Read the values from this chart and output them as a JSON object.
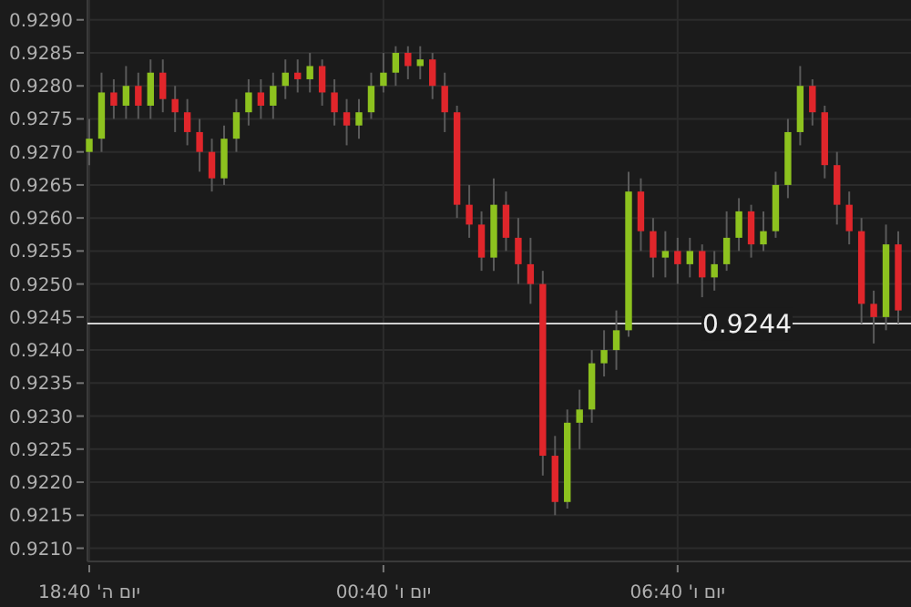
{
  "chart_data": {
    "type": "candlestick",
    "categories": [
      "יום ה' 18:40",
      null,
      null,
      null,
      null,
      null,
      null,
      null,
      null,
      null,
      null,
      null,
      null,
      null,
      null,
      null,
      null,
      null,
      null,
      null,
      null,
      null,
      null,
      null,
      "יום ו' 00:40",
      null,
      null,
      null,
      null,
      null,
      null,
      null,
      null,
      null,
      null,
      null,
      null,
      null,
      null,
      null,
      null,
      null,
      null,
      null,
      null,
      null,
      null,
      null,
      "יום ו' 06:40",
      null,
      null,
      null,
      null,
      null,
      null,
      null,
      null,
      null,
      null,
      null,
      null,
      null,
      null,
      null,
      null,
      null,
      null
    ],
    "ohlc": [
      [
        0.927,
        0.9275,
        0.9268,
        0.9272
      ],
      [
        0.9272,
        0.9282,
        0.927,
        0.9279
      ],
      [
        0.9279,
        0.9281,
        0.9275,
        0.9277
      ],
      [
        0.9277,
        0.9283,
        0.9275,
        0.928
      ],
      [
        0.928,
        0.9282,
        0.9275,
        0.9277
      ],
      [
        0.9277,
        0.9284,
        0.9275,
        0.9282
      ],
      [
        0.9282,
        0.9284,
        0.9276,
        0.9278
      ],
      [
        0.9278,
        0.928,
        0.9273,
        0.9276
      ],
      [
        0.9276,
        0.9278,
        0.9271,
        0.9273
      ],
      [
        0.9273,
        0.9275,
        0.9267,
        0.927
      ],
      [
        0.927,
        0.9272,
        0.9264,
        0.9266
      ],
      [
        0.9266,
        0.9274,
        0.9265,
        0.9272
      ],
      [
        0.9272,
        0.9278,
        0.927,
        0.9276
      ],
      [
        0.9276,
        0.9281,
        0.9274,
        0.9279
      ],
      [
        0.9279,
        0.9281,
        0.9275,
        0.9277
      ],
      [
        0.9277,
        0.9282,
        0.9275,
        0.928
      ],
      [
        0.928,
        0.9284,
        0.9278,
        0.9282
      ],
      [
        0.9282,
        0.9284,
        0.9279,
        0.9281
      ],
      [
        0.9281,
        0.9285,
        0.9279,
        0.9283
      ],
      [
        0.9283,
        0.9284,
        0.9277,
        0.9279
      ],
      [
        0.9279,
        0.9281,
        0.9274,
        0.9276
      ],
      [
        0.9276,
        0.9278,
        0.9271,
        0.9274
      ],
      [
        0.9274,
        0.9278,
        0.9272,
        0.9276
      ],
      [
        0.9276,
        0.9282,
        0.9275,
        0.928
      ],
      [
        0.928,
        0.9285,
        0.9279,
        0.9282
      ],
      [
        0.9282,
        0.9286,
        0.928,
        0.9285
      ],
      [
        0.9285,
        0.9286,
        0.9281,
        0.9283
      ],
      [
        0.9283,
        0.9286,
        0.9281,
        0.9284
      ],
      [
        0.9284,
        0.9285,
        0.9278,
        0.928
      ],
      [
        0.928,
        0.9282,
        0.9273,
        0.9276
      ],
      [
        0.9276,
        0.9277,
        0.926,
        0.9262
      ],
      [
        0.9262,
        0.9265,
        0.9257,
        0.9259
      ],
      [
        0.9259,
        0.9261,
        0.9252,
        0.9254
      ],
      [
        0.9254,
        0.9266,
        0.9252,
        0.9262
      ],
      [
        0.9262,
        0.9264,
        0.9255,
        0.9257
      ],
      [
        0.9257,
        0.926,
        0.925,
        0.9253
      ],
      [
        0.9253,
        0.9257,
        0.9247,
        0.925
      ],
      [
        0.925,
        0.9252,
        0.9221,
        0.9224
      ],
      [
        0.9224,
        0.9227,
        0.9215,
        0.9217
      ],
      [
        0.9217,
        0.9231,
        0.9216,
        0.9229
      ],
      [
        0.9229,
        0.9234,
        0.9225,
        0.9231
      ],
      [
        0.9231,
        0.924,
        0.9229,
        0.9238
      ],
      [
        0.9238,
        0.9243,
        0.9236,
        0.924
      ],
      [
        0.924,
        0.9246,
        0.9237,
        0.9243
      ],
      [
        0.9243,
        0.9267,
        0.9242,
        0.9264
      ],
      [
        0.9264,
        0.9266,
        0.9255,
        0.9258
      ],
      [
        0.9258,
        0.926,
        0.9251,
        0.9254
      ],
      [
        0.9254,
        0.9258,
        0.9251,
        0.9255
      ],
      [
        0.9255,
        0.9257,
        0.925,
        0.9253
      ],
      [
        0.9253,
        0.9257,
        0.9251,
        0.9255
      ],
      [
        0.9255,
        0.9256,
        0.9248,
        0.9251
      ],
      [
        0.9251,
        0.9255,
        0.9249,
        0.9253
      ],
      [
        0.9253,
        0.9261,
        0.9252,
        0.9257
      ],
      [
        0.9257,
        0.9263,
        0.9255,
        0.9261
      ],
      [
        0.9261,
        0.9262,
        0.9254,
        0.9256
      ],
      [
        0.9256,
        0.9261,
        0.9255,
        0.9258
      ],
      [
        0.9258,
        0.9267,
        0.9257,
        0.9265
      ],
      [
        0.9265,
        0.9275,
        0.9263,
        0.9273
      ],
      [
        0.9273,
        0.9283,
        0.9271,
        0.928
      ],
      [
        0.928,
        0.9281,
        0.9274,
        0.9276
      ],
      [
        0.9276,
        0.9277,
        0.9266,
        0.9268
      ],
      [
        0.9268,
        0.927,
        0.9259,
        0.9262
      ],
      [
        0.9262,
        0.9264,
        0.9256,
        0.9258
      ],
      [
        0.9258,
        0.926,
        0.9244,
        0.9247
      ],
      [
        0.9247,
        0.9249,
        0.9241,
        0.9245
      ],
      [
        0.9245,
        0.9259,
        0.9243,
        0.9256
      ],
      [
        0.9256,
        0.9258,
        0.9244,
        0.9246
      ]
    ],
    "colors": [
      "#8dc21f",
      "#8dc21f",
      "#e0262b",
      "#8dc21f",
      "#e0262b",
      "#8dc21f",
      "#e0262b",
      "#e0262b",
      "#e0262b",
      "#e0262b",
      "#e0262b",
      "#8dc21f",
      "#8dc21f",
      "#8dc21f",
      "#e0262b",
      "#8dc21f",
      "#8dc21f",
      "#e0262b",
      "#8dc21f",
      "#e0262b",
      "#e0262b",
      "#e0262b",
      "#8dc21f",
      "#8dc21f",
      "#8dc21f",
      "#8dc21f",
      "#e0262b",
      "#8dc21f",
      "#e0262b",
      "#e0262b",
      "#e0262b",
      "#e0262b",
      "#e0262b",
      "#8dc21f",
      "#e0262b",
      "#e0262b",
      "#e0262b",
      "#e0262b",
      "#e0262b",
      "#8dc21f",
      "#8dc21f",
      "#8dc21f",
      "#8dc21f",
      "#8dc21f",
      "#8dc21f",
      "#e0262b",
      "#e0262b",
      "#8dc21f",
      "#e0262b",
      "#8dc21f",
      "#e0262b",
      "#8dc21f",
      "#8dc21f",
      "#8dc21f",
      "#e0262b",
      "#8dc21f",
      "#8dc21f",
      "#8dc21f",
      "#8dc21f",
      "#e0262b",
      "#e0262b",
      "#e0262b",
      "#e0262b",
      "#e0262b",
      "#e0262b",
      "#8dc21f",
      "#e0262b"
    ],
    "ylim": [
      0.9208,
      0.9293
    ],
    "yticks": [
      {
        "value": 0.921,
        "label": "0.9210"
      },
      {
        "value": 0.9215,
        "label": "0.9215"
      },
      {
        "value": 0.922,
        "label": "0.9220"
      },
      {
        "value": 0.9225,
        "label": "0.9225"
      },
      {
        "value": 0.923,
        "label": "0.9230"
      },
      {
        "value": 0.9235,
        "label": "0.9235"
      },
      {
        "value": 0.924,
        "label": "0.9240"
      },
      {
        "value": 0.9245,
        "label": "0.9245"
      },
      {
        "value": 0.925,
        "label": "0.9250"
      },
      {
        "value": 0.9255,
        "label": "0.9255"
      },
      {
        "value": 0.926,
        "label": "0.9260"
      },
      {
        "value": 0.9265,
        "label": "0.9265"
      },
      {
        "value": 0.927,
        "label": "0.9270"
      },
      {
        "value": 0.9275,
        "label": "0.9275"
      },
      {
        "value": 0.928,
        "label": "0.9280"
      },
      {
        "value": 0.9285,
        "label": "0.9285"
      },
      {
        "value": 0.929,
        "label": "0.9290"
      }
    ],
    "grid": true,
    "ref_lines": [
      {
        "axis": "y",
        "value": 0.9244,
        "label": "0.9244",
        "color": "#d0d0d0"
      }
    ]
  }
}
